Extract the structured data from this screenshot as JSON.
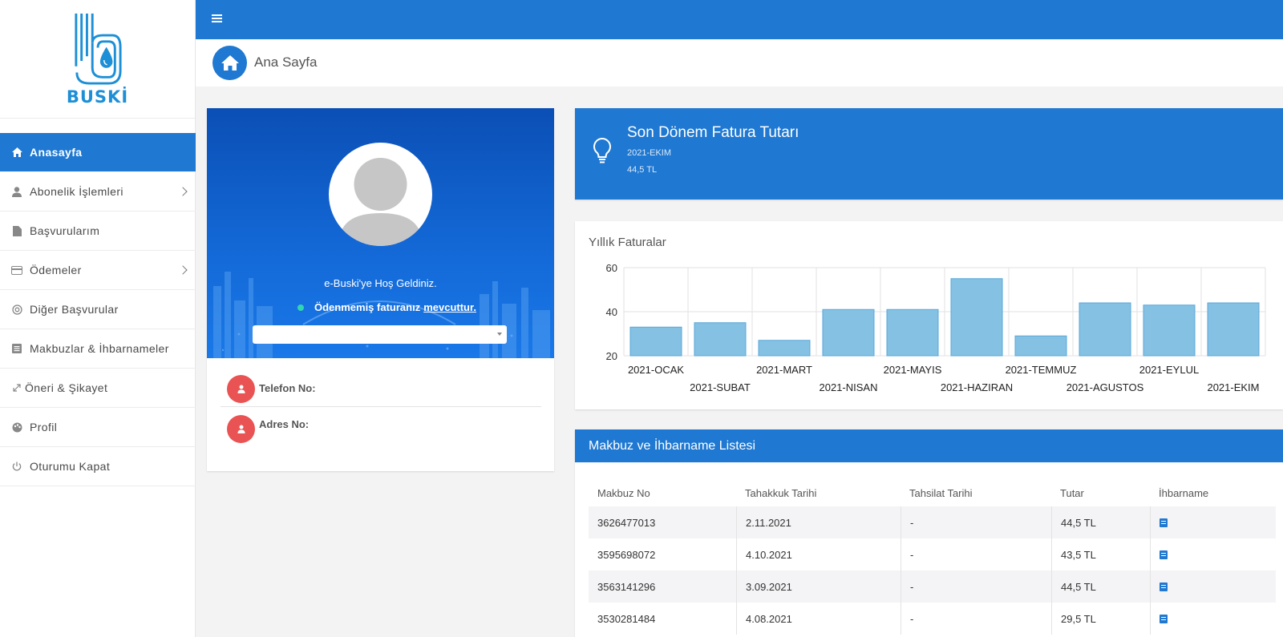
{
  "brand": {
    "logo_text": "BUSKİ"
  },
  "sidebar": {
    "items": [
      {
        "label": "Anasayfa",
        "icon": "home-icon"
      },
      {
        "label": "Abonelik İşlemleri",
        "icon": "user-icon"
      },
      {
        "label": "Başvurularım",
        "icon": "file-icon"
      },
      {
        "label": "Ödemeler",
        "icon": "credit-card-icon"
      },
      {
        "label": "Diğer Başvurular",
        "icon": "life-ring-icon"
      },
      {
        "label": "Makbuzlar & İhbarnameler",
        "icon": "list-alt-icon"
      },
      {
        "label": "Öneri & Şikayet",
        "icon": "expand-icon"
      },
      {
        "label": "Profil",
        "icon": "palette-icon"
      },
      {
        "label": "Oturumu Kapat",
        "icon": "power-icon"
      }
    ]
  },
  "header": {
    "page_title": "Ana Sayfa"
  },
  "profile": {
    "welcome": "e-Buski'ye Hoş Geldiniz.",
    "unpaid_text": "Ödenmemiş faturanız",
    "unpaid_link": "mevcuttur.",
    "select_value": "",
    "phone_label": "Telefon No:",
    "address_label": "Adres No:"
  },
  "bill": {
    "title": "Son Dönem Fatura Tutarı",
    "period": "2021-EKIM",
    "amount": "44,5 TL"
  },
  "chart_data": {
    "type": "bar",
    "title": "Yıllık Faturalar",
    "categories": [
      "2021-OCAK",
      "2021-SUBAT",
      "2021-MART",
      "2021-NISAN",
      "2021-MAYIS",
      "2021-HAZIRAN",
      "2021-TEMMUZ",
      "2021-AGUSTOS",
      "2021-EYLUL",
      "2021-EKIM"
    ],
    "values": [
      33,
      35,
      27,
      41,
      41,
      55,
      29,
      44,
      43,
      44
    ],
    "yticks": [
      20,
      40,
      60
    ],
    "ylim": [
      20,
      60
    ],
    "grid": true,
    "bar_color": "#84c1e3",
    "bar_border": "#5aa8d8"
  },
  "receipts": {
    "title": "Makbuz ve İhbarname Listesi",
    "columns": [
      "Makbuz No",
      "Tahakkuk Tarihi",
      "Tahsilat Tarihi",
      "Tutar",
      "İhbarname"
    ],
    "rows": [
      {
        "no": "3626477013",
        "accrual": "2.11.2021",
        "collection": "-",
        "amount": "44,5 TL"
      },
      {
        "no": "3595698072",
        "accrual": "4.10.2021",
        "collection": "-",
        "amount": "43,5 TL"
      },
      {
        "no": "3563141296",
        "accrual": "3.09.2021",
        "collection": "-",
        "amount": "44,5 TL"
      },
      {
        "no": "3530281484",
        "accrual": "4.08.2021",
        "collection": "-",
        "amount": "29,5 TL"
      }
    ]
  },
  "colors": {
    "primary": "#1f78d1",
    "danger": "#e95353",
    "online": "#31d6b1"
  }
}
